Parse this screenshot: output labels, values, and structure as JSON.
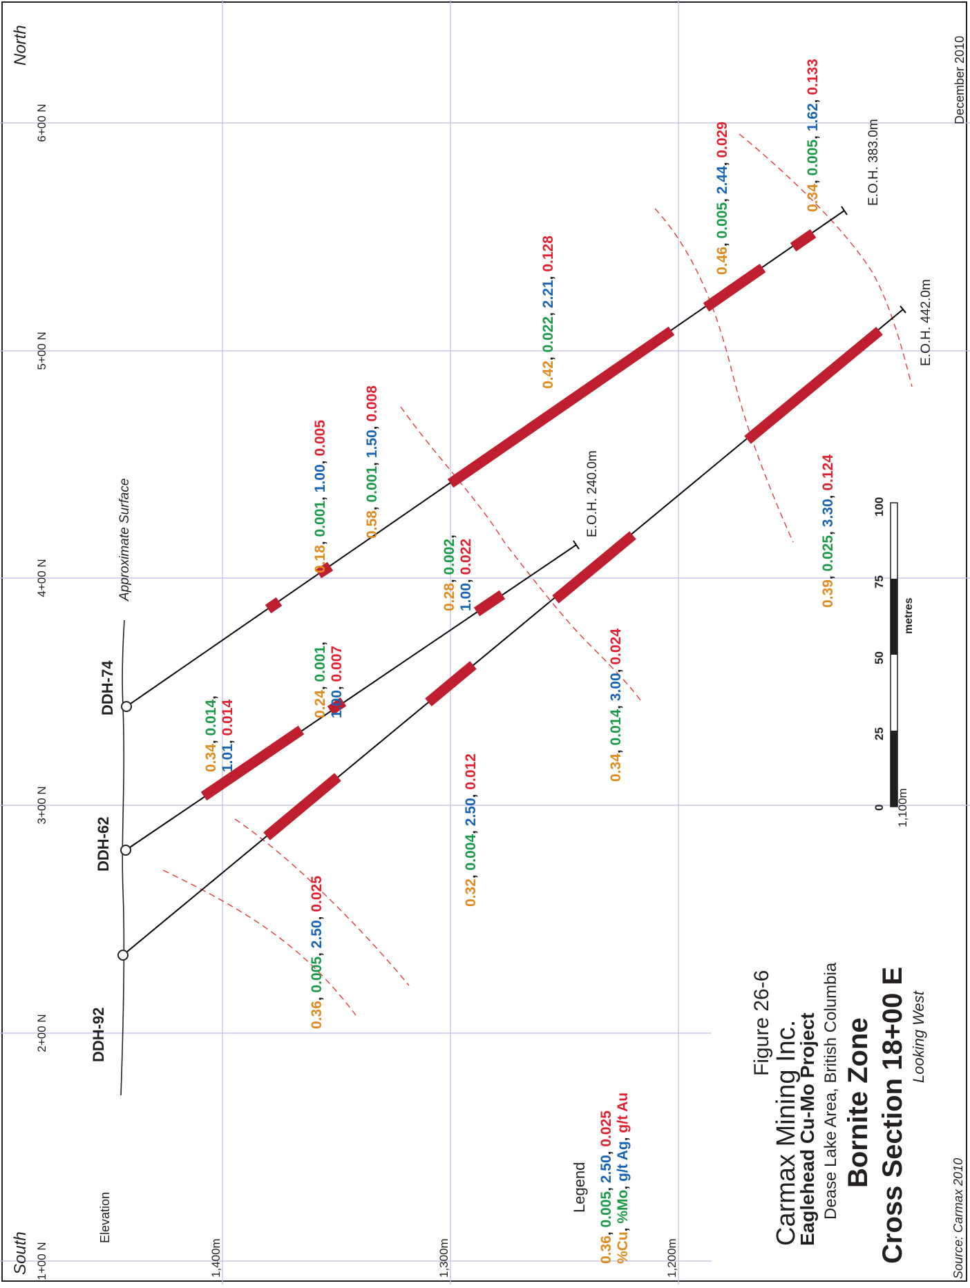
{
  "figure": {
    "number": "Figure 26-6",
    "company": "Carmax Mining Inc.",
    "project": "Eaglehead Cu-Mo Project",
    "location": "Dease Lake Area, British Columbia",
    "zone": "Bornite Zone",
    "section": "Cross Section 18+00 E",
    "view": "Looking West",
    "date": "December 2010",
    "source": "Source: Carmax 2010"
  },
  "directions": {
    "south": "South",
    "north": "North"
  },
  "northings": [
    "1+00 N",
    "2+00 N",
    "3+00 N",
    "4+00 N",
    "5+00 N",
    "6+00 N"
  ],
  "elevation": {
    "label": "Elevation",
    "levels": [
      "1,400m",
      "1,300m",
      "1,200m"
    ],
    "scale_level": "1,100m"
  },
  "surface_label": "Approximate Surface",
  "holes": [
    {
      "name": "DDH-92",
      "eoh": "E.O.H. 442.0m"
    },
    {
      "name": "DDH-62",
      "eoh": "E.O.H. 240.0m"
    },
    {
      "name": "DDH-74",
      "eoh": "E.O.H. 383.0m"
    }
  ],
  "assays": [
    {
      "cu": "0.36",
      "mo": "0.005",
      "ag": "2.50",
      "au": "0.025"
    },
    {
      "cu": "0.32",
      "mo": "0.004",
      "ag": "2.50",
      "au": "0.012"
    },
    {
      "cu": "0.34",
      "mo": "0.014",
      "ag": "3.00",
      "au": "0.024"
    },
    {
      "cu": "0.39",
      "mo": "0.025",
      "ag": "3.30",
      "au": "0.124"
    },
    {
      "cu": "0.34",
      "mo": "0.014",
      "ag": "1.01",
      "au": "0.014"
    },
    {
      "cu": "0.24",
      "mo": "0.001",
      "ag": "1.00",
      "au": "0.007"
    },
    {
      "cu": "0.28",
      "mo": "0.002",
      "ag": "1.00",
      "au": "0.022"
    },
    {
      "cu": "0.18",
      "mo": "0.001",
      "ag": "1.00",
      "au": "0.005"
    },
    {
      "cu": "0.58",
      "mo": "0.001",
      "ag": "1.50",
      "au": "0.008"
    },
    {
      "cu": "0.42",
      "mo": "0.022",
      "ag": "2.21",
      "au": "0.128"
    },
    {
      "cu": "0.46",
      "mo": "0.005",
      "ag": "2.44",
      "au": "0.029"
    },
    {
      "cu": "0.34",
      "mo": "0.005",
      "ag": "1.62",
      "au": "0.133"
    }
  ],
  "legend": {
    "title": "Legend",
    "example": {
      "cu": "0.36",
      "mo": "0.005",
      "ag": "2.50",
      "au": "0.025"
    },
    "units": {
      "cu": "%Cu",
      "mo": "%Mo",
      "ag": "g/t Ag",
      "au": "g/t Au"
    }
  },
  "scale": {
    "ticks": [
      "0",
      "25",
      "50",
      "75",
      "100"
    ],
    "unit": "metres"
  },
  "colors": {
    "cu": "#e08a1e",
    "mo": "#1a9a46",
    "ag": "#1763b4",
    "au": "#e0202e",
    "intercept": "#bf1e2e",
    "grid": "#b9bde3"
  }
}
